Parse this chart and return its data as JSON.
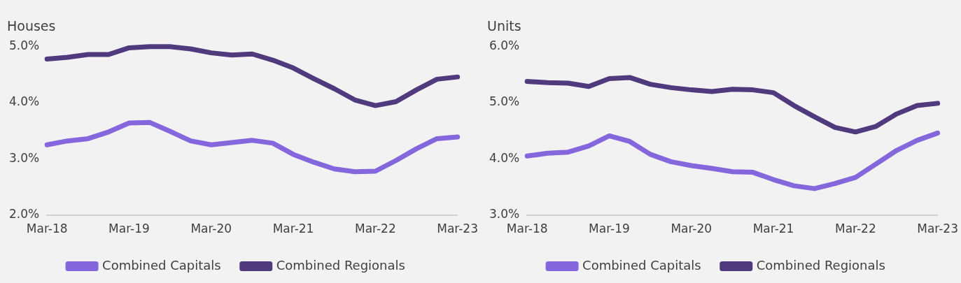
{
  "chart_data": [
    {
      "type": "line",
      "title": "Houses",
      "categories": [
        "Mar-18",
        null,
        null,
        null,
        "Mar-19",
        null,
        null,
        null,
        "Mar-20",
        null,
        null,
        null,
        "Mar-21",
        null,
        null,
        null,
        "Mar-22",
        null,
        null,
        null,
        "Mar-23"
      ],
      "series": [
        {
          "name": "Combined Capitals",
          "color": "#8466dd",
          "values": [
            3.25,
            3.32,
            3.36,
            3.48,
            3.64,
            3.65,
            3.49,
            3.32,
            3.25,
            3.29,
            3.33,
            3.28,
            3.08,
            2.94,
            2.82,
            2.77,
            2.78,
            2.97,
            3.18,
            3.36,
            3.39
          ]
        },
        {
          "name": "Combined Regionals",
          "color": "#4f3a7e",
          "values": [
            4.78,
            4.81,
            4.86,
            4.86,
            4.98,
            5.0,
            5.0,
            4.96,
            4.89,
            4.85,
            4.87,
            4.76,
            4.62,
            4.43,
            4.25,
            4.05,
            3.95,
            4.02,
            4.23,
            4.42,
            4.46
          ]
        }
      ],
      "ylim": [
        2,
        5
      ],
      "yticks": [
        {
          "value": 2,
          "label": "2.0%"
        },
        {
          "value": 3,
          "label": "3.0%"
        },
        {
          "value": 4,
          "label": "4.0%"
        },
        {
          "value": 5,
          "label": "5.0%"
        }
      ],
      "grid": false,
      "legend": "bottom",
      "marker": "none",
      "line_style": "solid"
    },
    {
      "type": "line",
      "title": "Units",
      "categories": [
        "Mar-18",
        null,
        null,
        null,
        "Mar-19",
        null,
        null,
        null,
        "Mar-20",
        null,
        null,
        null,
        "Mar-21",
        null,
        null,
        null,
        "Mar-22",
        null,
        null,
        null,
        "Mar-23"
      ],
      "series": [
        {
          "name": "Combined Capitals",
          "color": "#8466dd",
          "values": [
            4.05,
            4.1,
            4.12,
            4.23,
            4.41,
            4.31,
            4.08,
            3.95,
            3.88,
            3.83,
            3.77,
            3.76,
            3.63,
            3.52,
            3.47,
            3.56,
            3.67,
            3.91,
            4.15,
            4.33,
            4.46
          ]
        },
        {
          "name": "Combined Regionals",
          "color": "#4f3a7e",
          "values": [
            5.38,
            5.36,
            5.35,
            5.29,
            5.43,
            5.45,
            5.33,
            5.27,
            5.23,
            5.2,
            5.24,
            5.23,
            5.18,
            4.95,
            4.75,
            4.56,
            4.48,
            4.58,
            4.8,
            4.95,
            4.99
          ]
        }
      ],
      "ylim": [
        3,
        6
      ],
      "yticks": [
        {
          "value": 3,
          "label": "3.0%"
        },
        {
          "value": 4,
          "label": "4.0%"
        },
        {
          "value": 5,
          "label": "5.0%"
        },
        {
          "value": 6,
          "label": "6.0%"
        }
      ],
      "grid": false,
      "legend": "bottom",
      "marker": "none",
      "line_style": "solid"
    }
  ]
}
